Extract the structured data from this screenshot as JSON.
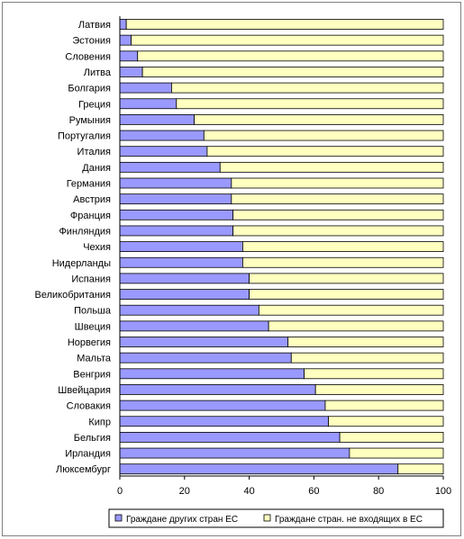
{
  "chart_data": {
    "type": "bar",
    "orientation": "horizontal",
    "stacked": "percent",
    "categories": [
      "Латвия",
      "Эстония",
      "Словения",
      "Литва",
      "Болгария",
      "Греция",
      "Румыния",
      "Португалия",
      "Италия",
      "Дания",
      "Германия",
      "Австрия",
      "Франция",
      "Финляндия",
      "Чехия",
      "Нидерланды",
      "Испания",
      "Великобритания",
      "Польша",
      "Швеция",
      "Норвегия",
      "Мальта",
      "Венгрия",
      "Швейцария",
      "Словакия",
      "Кипр",
      "Бельгия",
      "Ирландия",
      "Люксембург"
    ],
    "series": [
      {
        "name": "Граждане других стран ЕС",
        "color": "#9999ff",
        "values": [
          2,
          3.5,
          5.5,
          7,
          16,
          17.5,
          23,
          26,
          27,
          31,
          34.5,
          34.5,
          35,
          35,
          38,
          38,
          40,
          40,
          43,
          46,
          52,
          53,
          57,
          60.5,
          63.5,
          64.5,
          68,
          71,
          86
        ]
      },
      {
        "name": "Граждане стран. не входящих в ЕС",
        "color": "#ffffc0",
        "values": [
          98,
          96.5,
          94.5,
          93,
          84,
          82.5,
          77,
          74,
          73,
          69,
          65.5,
          65.5,
          65,
          65,
          62,
          62,
          60,
          60,
          57,
          54,
          48,
          47,
          43,
          39.5,
          36.5,
          35.5,
          32,
          29,
          14
        ]
      }
    ],
    "xlim": [
      0,
      100
    ],
    "xticks": [
      0,
      20,
      40,
      60,
      80,
      100
    ],
    "grid": false,
    "legend": "bottom",
    "title": "",
    "xlabel": "",
    "ylabel": ""
  }
}
